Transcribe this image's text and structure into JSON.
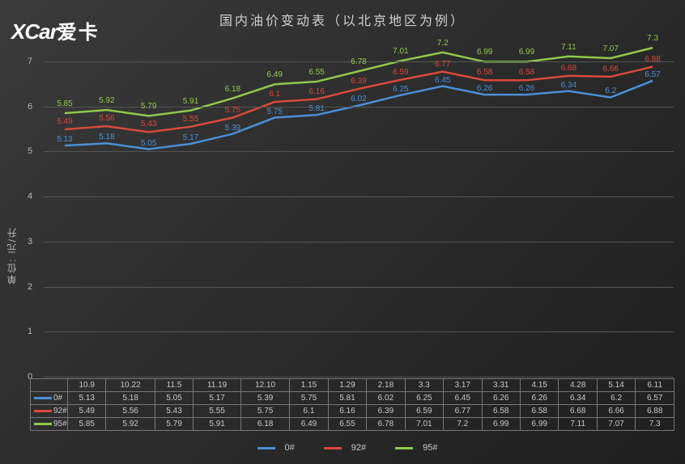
{
  "logo": {
    "en": "XCar",
    "cn": "爱卡"
  },
  "title": "国内油价变动表（以北京地区为例）",
  "y_axis_label": "单位: 元/升",
  "chart": {
    "type": "line",
    "background_color": "#2b2b2b",
    "grid_color": "#555555",
    "text_color": "#c8c8c8",
    "ylim": [
      0,
      7.5
    ],
    "ytick_step": 1,
    "yticks": [
      0,
      1,
      2,
      3,
      4,
      5,
      6,
      7
    ],
    "label_fontsize": 10,
    "line_width": 2.5,
    "categories": [
      "10.9",
      "10.22",
      "11.5",
      "11.19",
      "12.10",
      "1.15",
      "1.29",
      "2.18",
      "3.3",
      "3.17",
      "3.31",
      "4.15",
      "4.28",
      "5.14",
      "6.11"
    ],
    "series": [
      {
        "name": "0#",
        "color": "#4a8fd6",
        "values": [
          5.13,
          5.18,
          5.05,
          5.17,
          5.39,
          5.75,
          5.81,
          6.02,
          6.25,
          6.45,
          6.26,
          6.26,
          6.34,
          6.2,
          6.57
        ]
      },
      {
        "name": "92#",
        "color": "#d84a3a",
        "values": [
          5.49,
          5.56,
          5.43,
          5.55,
          5.75,
          6.1,
          6.16,
          6.39,
          6.59,
          6.77,
          6.58,
          6.58,
          6.68,
          6.66,
          6.88
        ]
      },
      {
        "name": "95#",
        "color": "#8fc94a",
        "values": [
          5.85,
          5.92,
          5.79,
          5.91,
          6.18,
          6.49,
          6.55,
          6.78,
          7.01,
          7.2,
          6.99,
          6.99,
          7.11,
          7.07,
          7.3
        ]
      }
    ]
  }
}
